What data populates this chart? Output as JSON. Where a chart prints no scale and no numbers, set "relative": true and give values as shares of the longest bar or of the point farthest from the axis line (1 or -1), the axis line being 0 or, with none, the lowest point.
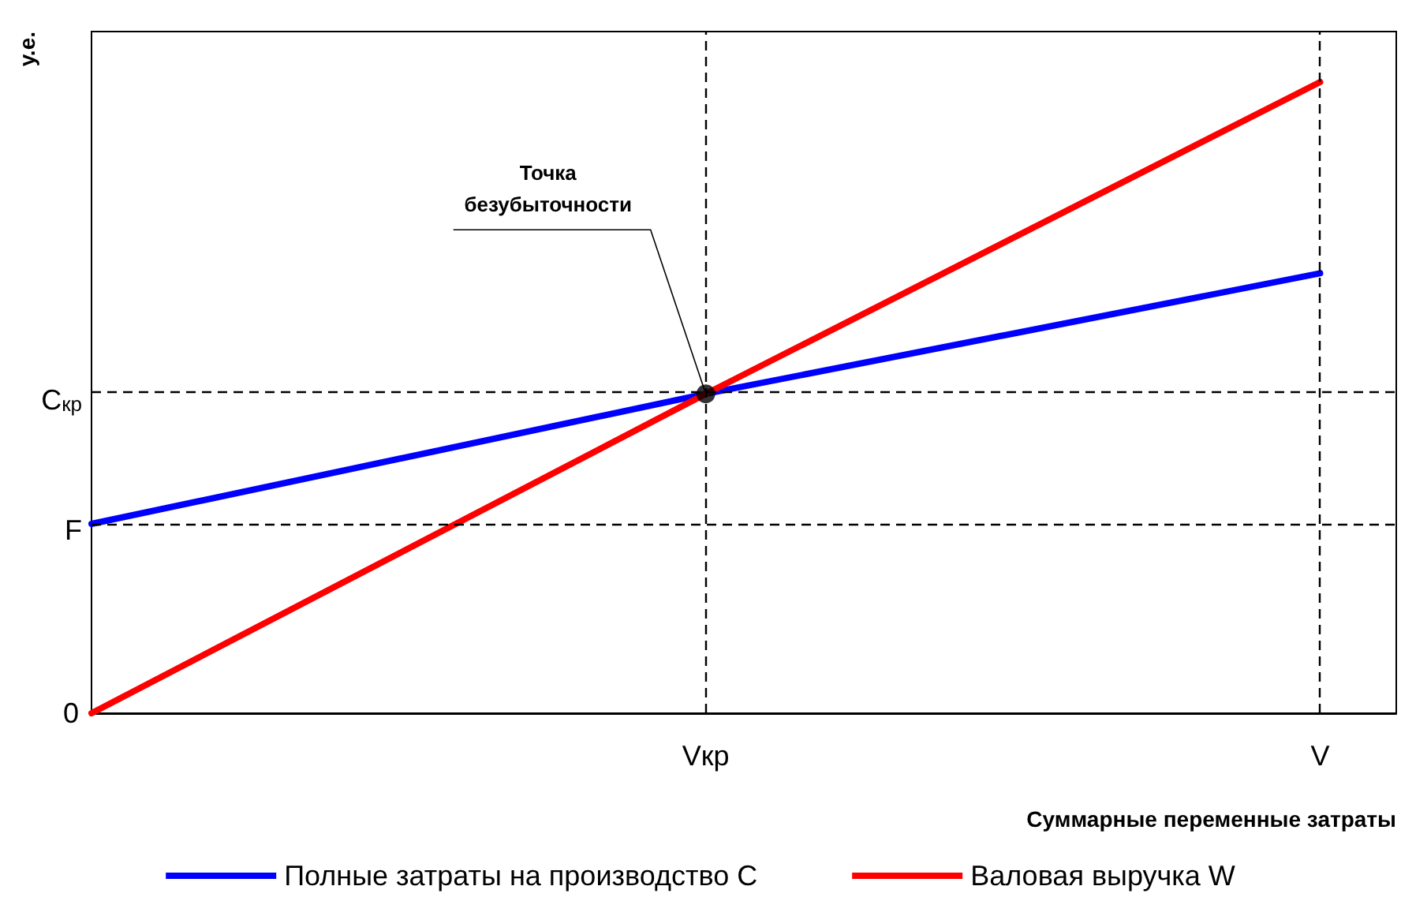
{
  "chart_data": {
    "type": "line",
    "relative": true,
    "xlabel": "Суммарные переменные затраты",
    "ylabel": "у.е.",
    "categories": [
      null,
      "Vкр",
      "V"
    ],
    "series": [
      {
        "name": "Полные затраты на производство С",
        "color": "#0000ff",
        "values": [
          0.3,
          0.506,
          0.697
        ]
      },
      {
        "name": "Валовая выручка W",
        "color": "#ff0000",
        "values": [
          0,
          0.506,
          1
        ]
      },
      {
        "type": "scatter",
        "color": "#000000",
        "x": [
          "Vкр"
        ],
        "values": [
          0.506
        ],
        "marker": "circle"
      }
    ],
    "ref_lines": [
      {
        "axis": "y",
        "value": 0.3,
        "label": "F",
        "color": "#000000",
        "line_style": "dashed"
      },
      {
        "axis": "y",
        "value": 0.506,
        "label": "C$_{кр}$",
        "color": "#000000",
        "line_style": "dashed"
      },
      {
        "axis": "x",
        "value": "Vкр",
        "color": "#000000",
        "line_style": "dashed"
      },
      {
        "axis": "x",
        "value": "V",
        "color": "#000000",
        "line_style": "dashed"
      }
    ],
    "annotations": [
      "0",
      {
        "text": "Точка безубыточности",
        "x": "Vкр",
        "y": 0.506
      }
    ],
    "legend": "bottom",
    "marker": "none",
    "line_style": "solid",
    "grid": false
  }
}
